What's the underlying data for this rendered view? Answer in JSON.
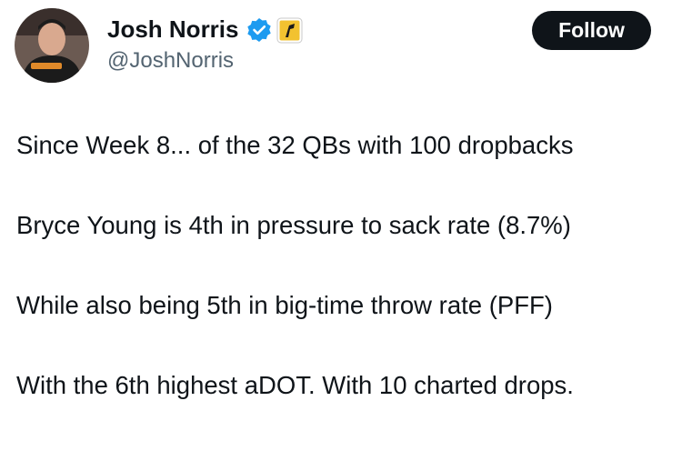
{
  "author": {
    "name": "Josh Norris",
    "handle": "@JoshNorris"
  },
  "follow_button": "Follow",
  "paragraphs": [
    "Since Week 8... of the 32 QBs with 100 dropbacks",
    "Bryce Young is 4th in pressure to sack rate (8.7%)",
    "While also being 5th in big-time throw rate (PFF)",
    "With the 6th highest aDOT. With 10 charted drops."
  ]
}
